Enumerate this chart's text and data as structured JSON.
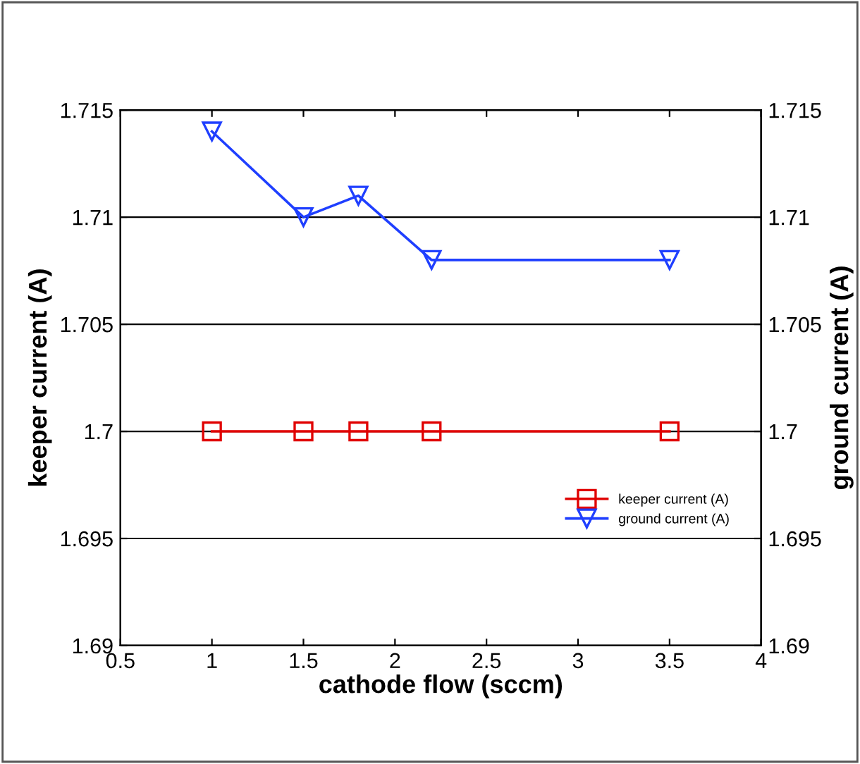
{
  "chart_data": {
    "type": "line",
    "xlabel": "cathode flow (sccm)",
    "ylabel": "keeper current (A)",
    "y2label": "ground current (A)",
    "series": [
      {
        "name": "keeper current (A)",
        "color": "#e00000",
        "x": [
          1,
          1.5,
          1.8,
          2.2,
          3.5
        ],
        "values": [
          1.7,
          1.7,
          1.7,
          1.7,
          1.7
        ],
        "marker": "square"
      },
      {
        "name": "ground current (A)",
        "color": "#1f3fff",
        "x": [
          1,
          1.5,
          1.8,
          2.2,
          3.5
        ],
        "values": [
          1.714,
          1.71,
          1.711,
          1.708,
          1.708
        ],
        "marker": "triangle",
        "axis": "y2"
      }
    ],
    "xlim": [
      0.5,
      4
    ],
    "xticks": [
      0.5,
      1,
      1.5,
      2,
      2.5,
      3,
      3.5,
      4
    ],
    "ylim": [
      1.69,
      1.715
    ],
    "yticks": [
      1.69,
      1.695,
      1.7,
      1.705,
      1.71,
      1.715
    ],
    "y2lim": [
      1.69,
      1.715
    ],
    "y2ticks": [
      1.69,
      1.695,
      1.7,
      1.705,
      1.71,
      1.715
    ],
    "grid": "y",
    "legend": "bottom right",
    "line_style": "solid"
  }
}
